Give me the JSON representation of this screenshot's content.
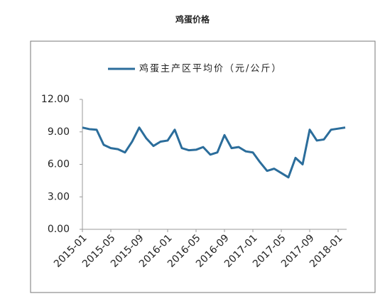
{
  "chart_data": {
    "type": "line",
    "title": "鸡蛋价格",
    "categories": [
      "2015-01",
      null,
      null,
      null,
      "2015-05",
      null,
      null,
      null,
      "2015-09",
      null,
      null,
      null,
      "2016-01",
      null,
      null,
      null,
      "2016-05",
      null,
      null,
      null,
      "2016-09",
      null,
      null,
      null,
      "2017-01",
      null,
      null,
      null,
      "2017-05",
      null,
      null,
      null,
      "2017-09",
      null,
      null,
      null,
      "2018-01",
      null
    ],
    "series": [
      {
        "name": "鸡蛋主产区平均价（元/公斤）",
        "color": "#2b6d9b",
        "values": [
          9.4,
          9.25,
          9.2,
          7.8,
          7.5,
          7.4,
          7.1,
          8.1,
          9.4,
          8.4,
          7.7,
          8.1,
          8.2,
          9.2,
          7.5,
          7.3,
          7.35,
          7.6,
          6.9,
          7.1,
          8.7,
          7.5,
          7.6,
          7.2,
          7.1,
          6.2,
          5.4,
          5.6,
          5.2,
          4.8,
          6.6,
          6.0,
          9.2,
          8.2,
          8.3,
          9.2,
          9.3,
          9.4
        ]
      }
    ],
    "ylim": [
      0,
      12
    ],
    "yticks": [
      {
        "value": 0,
        "label": "0.00"
      },
      {
        "value": 3,
        "label": "3.00"
      },
      {
        "value": 6,
        "label": "6.00"
      },
      {
        "value": 9,
        "label": "9.00"
      },
      {
        "value": 12,
        "label": "12.00"
      }
    ],
    "legend": "top",
    "grid": false
  }
}
